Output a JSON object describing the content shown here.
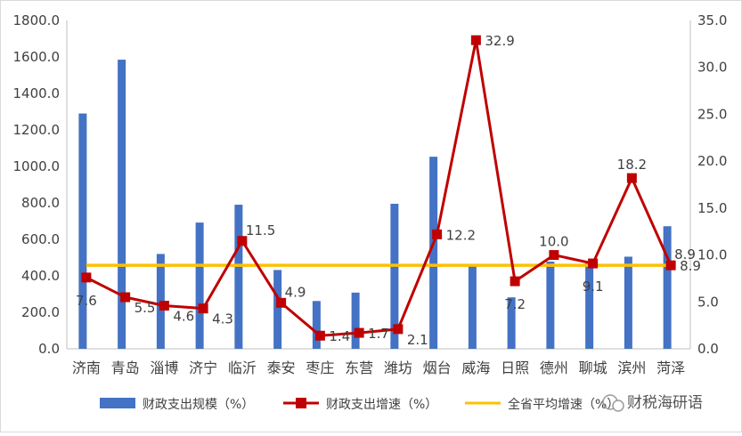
{
  "chart_data": {
    "type": "bar",
    "categories": [
      "济南",
      "青岛",
      "淄博",
      "济宁",
      "临沂",
      "泰安",
      "枣庄",
      "东营",
      "潍坊",
      "烟台",
      "威海",
      "日照",
      "德州",
      "聊城",
      "滨州",
      "菏泽"
    ],
    "series": [
      {
        "name": "财政支出规模（%）",
        "type": "bar",
        "axis": "left",
        "color": "#4472C4",
        "values": [
          1290,
          1585,
          520,
          692,
          790,
          432,
          262,
          308,
          795,
          1053,
          452,
          282,
          478,
          472,
          505,
          672
        ]
      },
      {
        "name": "财政支出增速（%）",
        "type": "line",
        "axis": "right",
        "color": "#C00000",
        "marker": "square",
        "values": [
          7.6,
          5.5,
          4.6,
          4.3,
          11.5,
          4.9,
          1.4,
          1.7,
          2.1,
          12.2,
          32.9,
          7.2,
          10.0,
          9.1,
          18.2,
          8.9
        ],
        "labels": [
          "7.6",
          "5.5",
          "4.6",
          "4.3",
          "11.5",
          "4.9",
          "1.4",
          "1.7",
          "2.1",
          "12.2",
          "32.9",
          "7.2",
          "10.0",
          "9.1",
          "18.2",
          "8.9"
        ]
      },
      {
        "name": "全省平均增速（%）",
        "type": "line",
        "axis": "right",
        "color": "#FFC000",
        "values": [
          8.9,
          8.9,
          8.9,
          8.9,
          8.9,
          8.9,
          8.9,
          8.9,
          8.9,
          8.9,
          8.9,
          8.9,
          8.9,
          8.9,
          8.9,
          8.9
        ],
        "end_label": "8.9"
      }
    ],
    "y_left": {
      "ylim": [
        0,
        1800
      ],
      "ticks": [
        "0.0",
        "200.0",
        "400.0",
        "600.0",
        "800.0",
        "1000.0",
        "1200.0",
        "1400.0",
        "1600.0",
        "1800.0"
      ]
    },
    "y_right": {
      "ylim": [
        0,
        35
      ],
      "ticks": [
        "0.0",
        "5.0",
        "10.0",
        "15.0",
        "20.0",
        "25.0",
        "30.0",
        "35.0"
      ]
    },
    "grid": false,
    "legend_position": "bottom"
  },
  "watermark": "财税海研语"
}
